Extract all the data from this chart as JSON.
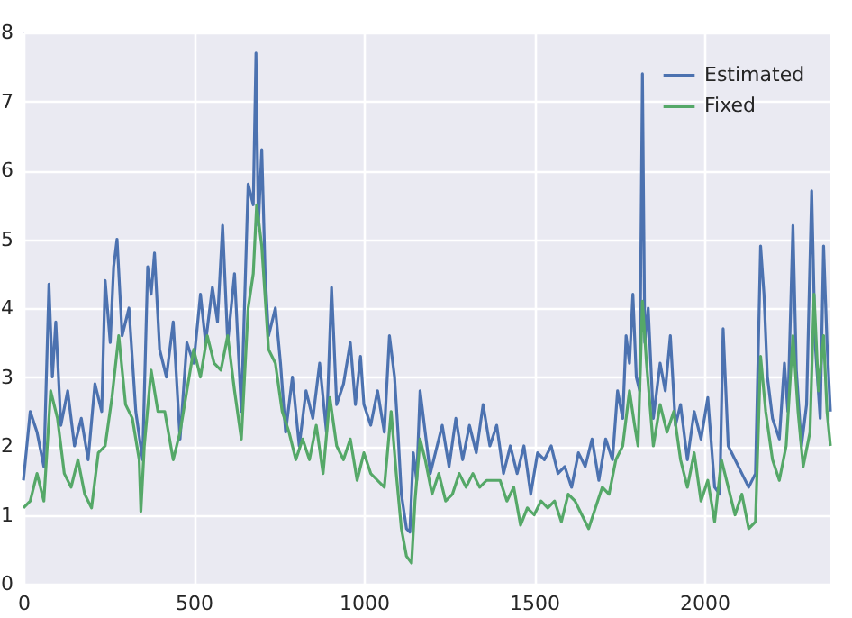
{
  "chart_data": {
    "type": "line",
    "xlim": [
      0,
      2370
    ],
    "xticks": [
      0,
      500,
      1000,
      1500,
      2000
    ],
    "ylim": [
      0,
      8
    ],
    "yticks": [
      0,
      1,
      2,
      3,
      4,
      5,
      6,
      7,
      8
    ],
    "grid": true,
    "legend": "top right",
    "line_style": "solid",
    "marker": "none",
    "series": [
      {
        "name": "Estimated",
        "color": "#4c72b0",
        "x": [
          0,
          20,
          40,
          60,
          75,
          85,
          95,
          110,
          130,
          150,
          170,
          190,
          210,
          230,
          240,
          255,
          265,
          275,
          290,
          310,
          330,
          350,
          365,
          375,
          385,
          400,
          420,
          440,
          460,
          480,
          500,
          520,
          535,
          555,
          570,
          585,
          600,
          620,
          640,
          660,
          675,
          683,
          690,
          700,
          710,
          720,
          740,
          755,
          770,
          790,
          810,
          830,
          850,
          870,
          890,
          905,
          920,
          940,
          960,
          975,
          990,
          1000,
          1020,
          1040,
          1060,
          1075,
          1090,
          1100,
          1110,
          1125,
          1135,
          1145,
          1155,
          1165,
          1180,
          1195,
          1210,
          1230,
          1250,
          1270,
          1290,
          1310,
          1330,
          1350,
          1370,
          1390,
          1410,
          1430,
          1450,
          1470,
          1490,
          1510,
          1530,
          1550,
          1570,
          1590,
          1610,
          1630,
          1650,
          1670,
          1690,
          1710,
          1730,
          1745,
          1760,
          1770,
          1780,
          1790,
          1800,
          1810,
          1818,
          1825,
          1835,
          1850,
          1870,
          1885,
          1900,
          1915,
          1930,
          1950,
          1970,
          1990,
          2010,
          2030,
          2045,
          2055,
          2070,
          2090,
          2110,
          2130,
          2150,
          2165,
          2175,
          2185,
          2200,
          2220,
          2235,
          2245,
          2260,
          2270,
          2285,
          2300,
          2315,
          2325,
          2340,
          2350,
          2360,
          2370
        ],
        "values": [
          1.5,
          2.5,
          2.2,
          1.7,
          4.35,
          3.0,
          3.8,
          2.3,
          2.8,
          2.0,
          2.4,
          1.8,
          2.9,
          2.5,
          4.4,
          3.5,
          4.6,
          5.0,
          3.6,
          4.0,
          2.5,
          1.8,
          4.6,
          4.2,
          4.8,
          3.4,
          3.0,
          3.8,
          2.1,
          3.5,
          3.2,
          4.2,
          3.5,
          4.3,
          3.8,
          5.2,
          3.5,
          4.5,
          2.5,
          5.8,
          5.5,
          7.7,
          5.2,
          6.3,
          4.5,
          3.6,
          4.0,
          3.2,
          2.2,
          3.0,
          2.0,
          2.8,
          2.4,
          3.2,
          2.2,
          4.3,
          2.6,
          2.9,
          3.5,
          2.6,
          3.3,
          2.6,
          2.3,
          2.8,
          2.2,
          3.6,
          3.0,
          2.2,
          1.3,
          0.8,
          0.75,
          1.9,
          1.5,
          2.8,
          2.2,
          1.6,
          1.9,
          2.3,
          1.7,
          2.4,
          1.8,
          2.3,
          1.9,
          2.6,
          2.0,
          2.3,
          1.6,
          2.0,
          1.6,
          2.0,
          1.3,
          1.9,
          1.8,
          2.0,
          1.6,
          1.7,
          1.4,
          1.9,
          1.7,
          2.1,
          1.5,
          2.1,
          1.8,
          2.8,
          2.4,
          3.6,
          3.2,
          4.2,
          3.0,
          2.8,
          7.4,
          3.5,
          4.0,
          2.4,
          3.2,
          2.8,
          3.6,
          2.3,
          2.6,
          1.8,
          2.5,
          2.1,
          2.7,
          1.4,
          1.3,
          3.7,
          2.0,
          1.8,
          1.6,
          1.4,
          1.6,
          4.9,
          4.2,
          3.0,
          2.4,
          2.1,
          3.2,
          2.5,
          5.2,
          3.1,
          2.0,
          2.6,
          5.7,
          3.5,
          2.4,
          4.9,
          3.5,
          2.5
        ]
      },
      {
        "name": "Fixed",
        "color": "#55a868",
        "x": [
          0,
          20,
          40,
          60,
          80,
          100,
          120,
          140,
          160,
          180,
          200,
          220,
          240,
          260,
          280,
          300,
          320,
          340,
          345,
          355,
          375,
          395,
          415,
          440,
          460,
          480,
          500,
          520,
          540,
          560,
          580,
          600,
          620,
          640,
          660,
          675,
          685,
          700,
          720,
          740,
          760,
          780,
          800,
          820,
          840,
          860,
          880,
          900,
          920,
          940,
          960,
          980,
          1000,
          1020,
          1040,
          1060,
          1080,
          1095,
          1110,
          1125,
          1140,
          1150,
          1165,
          1180,
          1200,
          1220,
          1240,
          1260,
          1280,
          1300,
          1320,
          1340,
          1360,
          1380,
          1400,
          1420,
          1440,
          1460,
          1480,
          1500,
          1520,
          1540,
          1560,
          1580,
          1600,
          1620,
          1640,
          1660,
          1680,
          1700,
          1720,
          1740,
          1760,
          1780,
          1795,
          1805,
          1818,
          1830,
          1850,
          1870,
          1890,
          1910,
          1930,
          1950,
          1970,
          1990,
          2010,
          2030,
          2050,
          2070,
          2090,
          2110,
          2130,
          2150,
          2165,
          2180,
          2200,
          2220,
          2240,
          2260,
          2275,
          2290,
          2310,
          2322,
          2335,
          2350,
          2360,
          2370
        ],
        "values": [
          1.1,
          1.2,
          1.6,
          1.2,
          2.8,
          2.4,
          1.6,
          1.4,
          1.8,
          1.3,
          1.1,
          1.9,
          2.0,
          2.7,
          3.6,
          2.6,
          2.4,
          1.8,
          1.05,
          2.0,
          3.1,
          2.5,
          2.5,
          1.8,
          2.2,
          2.8,
          3.4,
          3.0,
          3.6,
          3.2,
          3.1,
          3.6,
          2.8,
          2.1,
          4.0,
          4.5,
          5.5,
          4.9,
          3.4,
          3.2,
          2.5,
          2.2,
          1.8,
          2.1,
          1.8,
          2.3,
          1.6,
          2.7,
          2.0,
          1.8,
          2.1,
          1.5,
          1.9,
          1.6,
          1.5,
          1.4,
          2.5,
          1.6,
          0.8,
          0.4,
          0.3,
          1.2,
          2.1,
          1.8,
          1.3,
          1.6,
          1.2,
          1.3,
          1.6,
          1.4,
          1.6,
          1.4,
          1.5,
          1.5,
          1.5,
          1.2,
          1.4,
          0.85,
          1.1,
          1.0,
          1.2,
          1.1,
          1.2,
          0.9,
          1.3,
          1.2,
          1.0,
          0.8,
          1.1,
          1.4,
          1.3,
          1.8,
          2.0,
          2.8,
          2.3,
          2.0,
          4.1,
          3.2,
          2.0,
          2.6,
          2.2,
          2.5,
          1.8,
          1.4,
          1.9,
          1.2,
          1.5,
          0.9,
          1.8,
          1.4,
          1.0,
          1.3,
          0.8,
          0.9,
          3.3,
          2.5,
          1.8,
          1.5,
          2.0,
          3.6,
          2.5,
          1.7,
          2.2,
          4.2,
          2.8,
          3.6,
          2.5,
          2.0
        ]
      }
    ]
  }
}
